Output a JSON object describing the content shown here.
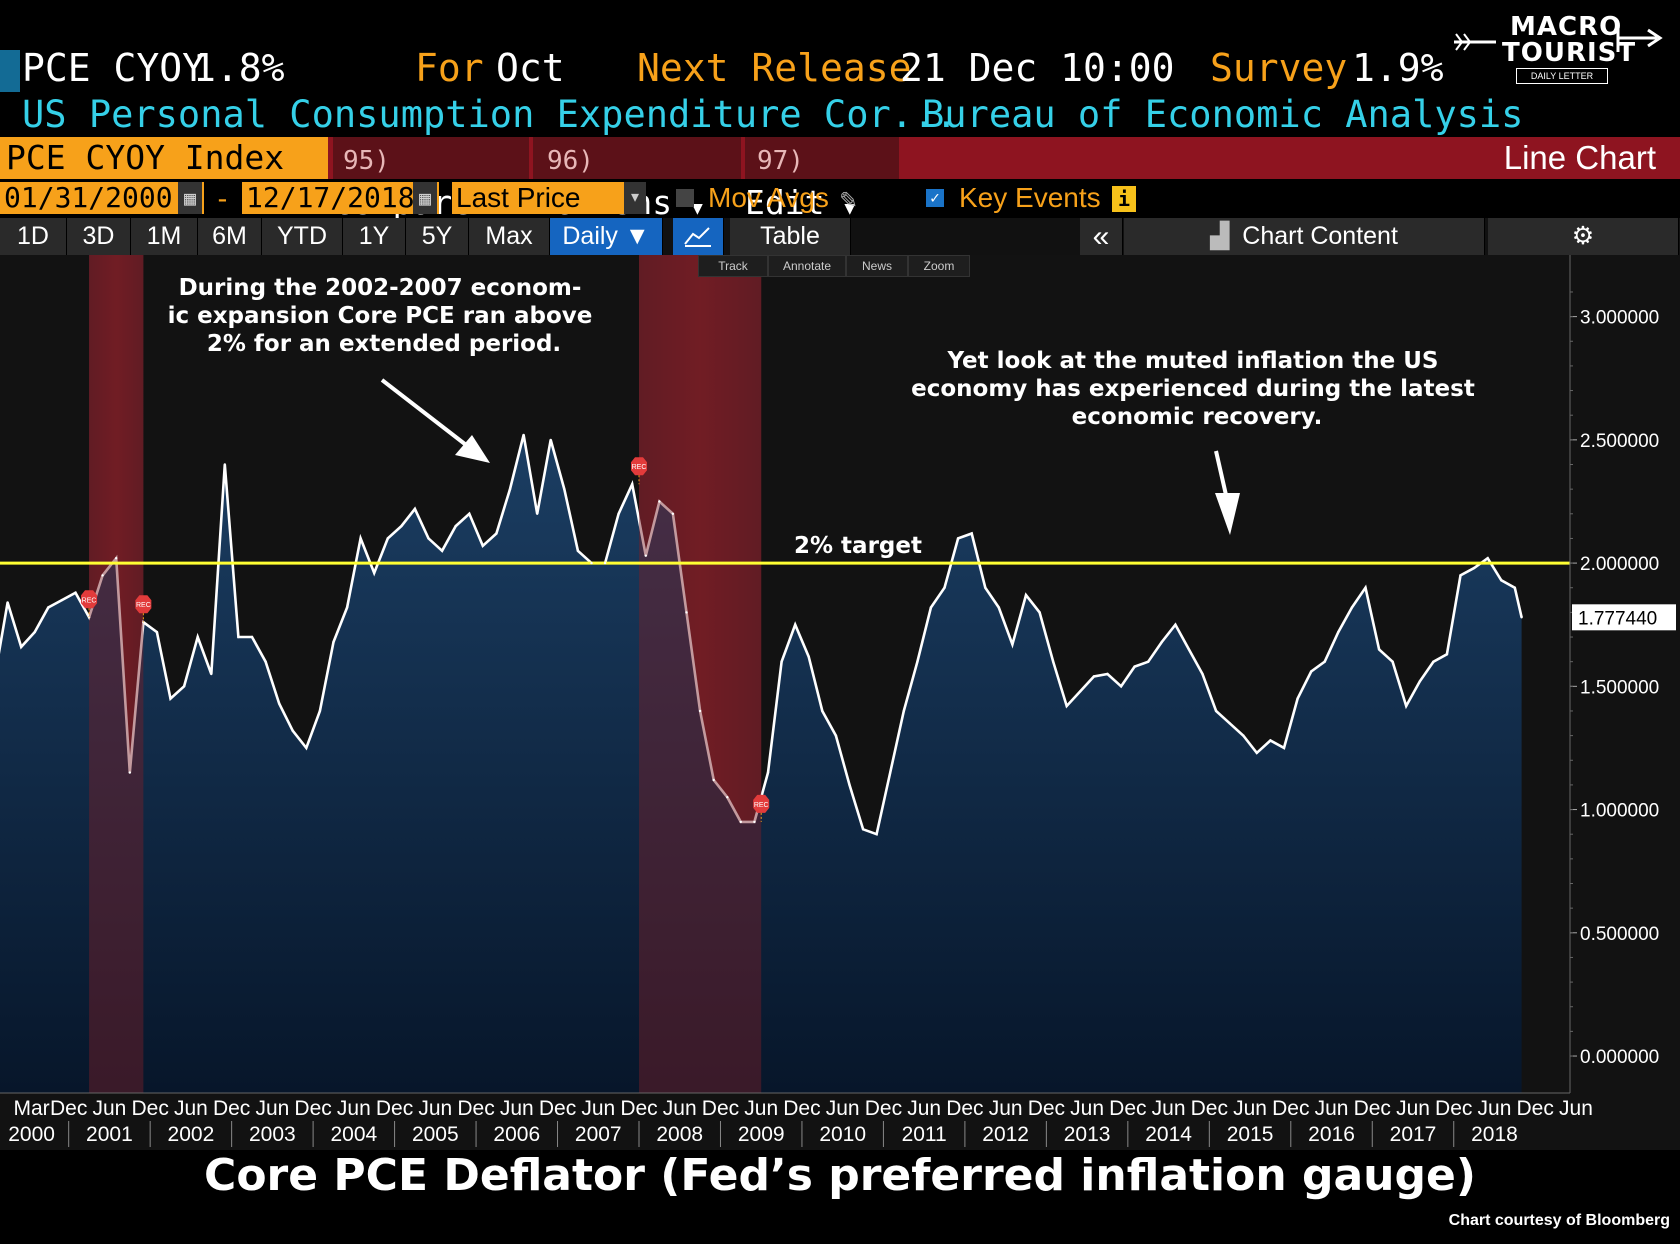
{
  "header": {
    "ticker": "PCE CYOY",
    "value": "1.8%",
    "for_label": "For",
    "for_value": "Oct",
    "next_release_label": "Next Release",
    "next_release_value": "21 Dec 10:00",
    "survey_label": "Survey",
    "survey_value": "1.9%",
    "description": "US Personal Consumption Expenditure Cor...",
    "source": "Bureau of Economic Analysis"
  },
  "logo": {
    "line1": "MACRO",
    "line2": "TOURIST",
    "line3": "DAILY LETTER"
  },
  "toolbar": {
    "security": "PCE CYOY Index",
    "compare_num": "95)",
    "compare": "Compare",
    "actions_num": "96)",
    "actions": "Actions",
    "edit_num": "97)",
    "edit": "Edit",
    "chart_type": "Line Chart",
    "start_date": "01/31/2000",
    "date_sep": "-",
    "end_date": "12/17/2018",
    "price_field": "Last Price",
    "mov_avgs": "Mov Avgs",
    "key_events": "Key Events",
    "ranges": [
      "1D",
      "3D",
      "1M",
      "6M",
      "YTD",
      "1Y",
      "5Y",
      "Max"
    ],
    "frequency": "Daily ▼",
    "table": "Table",
    "collapse": "«",
    "chart_content": "Chart Content",
    "tools": [
      "Track",
      "Annotate",
      "News",
      "Zoom"
    ]
  },
  "colors": {
    "accent": "#f7a11a",
    "cyan": "#35d0e8",
    "bar_red": "#8e1420",
    "line": "#ffffff",
    "target": "#ffff33",
    "recession": "#6a1c22",
    "area": "#0d2a4a"
  },
  "chart_data": {
    "type": "area",
    "title": "Core PCE Deflator (Fed’s preferred inflation gauge)",
    "credit": "Chart courtesy of Bloomberg",
    "ylim": [
      -0.15,
      3.25
    ],
    "y_ticks": [
      "0.000000",
      "0.500000",
      "1.000000",
      "1.500000",
      "2.000000",
      "2.500000",
      "3.000000"
    ],
    "x_month_labels": [
      "Mar",
      "Dec",
      "Jun",
      "Dec",
      "Jun",
      "Dec",
      "Jun",
      "Dec",
      "Jun",
      "Dec",
      "Jun",
      "Dec",
      "Jun",
      "Dec",
      "Jun",
      "Dec",
      "Jun",
      "Dec",
      "Jun",
      "Dec",
      "Jun",
      "Dec",
      "Jun",
      "Dec",
      "Jun",
      "Dec",
      "Jun",
      "Dec",
      "Jun",
      "Dec",
      "Jun",
      "Dec",
      "Jun",
      "Dec",
      "Jun",
      "Dec",
      "Jun",
      "Dec",
      "Jun"
    ],
    "x_year_labels": [
      "2000",
      "2001",
      "2002",
      "2003",
      "2004",
      "2005",
      "2006",
      "2007",
      "2008",
      "2009",
      "2010",
      "2011",
      "2012",
      "2013",
      "2014",
      "2015",
      "2016",
      "2017",
      "2018"
    ],
    "last_value_label": "1.777440",
    "target_value": 2.0,
    "target_label": "2% target",
    "recessions": [
      [
        "2001-03",
        "2001-11"
      ],
      [
        "2007-12",
        "2009-06"
      ]
    ],
    "annotations": [
      "During the 2002-2007 econom-\nic expansion Core PCE ran above\n2% for an extended period.",
      "Yet look at the muted inflation the US\neconomy has experienced during the latest\neconomic recovery."
    ],
    "event_marker_label": "REC",
    "series": [
      {
        "x": [
          "2000-01",
          "2000-03",
          "2000-05",
          "2000-07",
          "2000-09",
          "2000-11",
          "2001-01",
          "2001-03",
          "2001-05",
          "2001-07",
          "2001-09",
          "2001-11",
          "2002-01",
          "2002-03",
          "2002-05",
          "2002-07",
          "2002-09",
          "2002-11",
          "2003-01",
          "2003-03",
          "2003-05",
          "2003-07",
          "2003-09",
          "2003-11",
          "2004-01",
          "2004-03",
          "2004-05",
          "2004-07",
          "2004-09",
          "2004-11",
          "2005-01",
          "2005-03",
          "2005-05",
          "2005-07",
          "2005-09",
          "2005-11",
          "2006-01",
          "2006-03",
          "2006-05",
          "2006-07",
          "2006-09",
          "2006-11",
          "2007-01",
          "2007-03",
          "2007-05",
          "2007-07",
          "2007-09",
          "2007-11",
          "2008-01",
          "2008-03",
          "2008-05",
          "2008-07",
          "2008-09",
          "2008-11",
          "2009-01",
          "2009-03",
          "2009-05",
          "2009-07",
          "2009-09",
          "2009-11",
          "2010-01",
          "2010-03",
          "2010-05",
          "2010-07",
          "2010-09",
          "2010-11",
          "2011-01",
          "2011-03",
          "2011-05",
          "2011-07",
          "2011-09",
          "2011-11",
          "2012-01",
          "2012-03",
          "2012-05",
          "2012-07",
          "2012-09",
          "2012-11",
          "2013-01",
          "2013-03",
          "2013-05",
          "2013-07",
          "2013-09",
          "2013-11",
          "2014-01",
          "2014-03",
          "2014-05",
          "2014-07",
          "2014-09",
          "2014-11",
          "2015-01",
          "2015-03",
          "2015-05",
          "2015-07",
          "2015-09",
          "2015-11",
          "2016-01",
          "2016-03",
          "2016-05",
          "2016-07",
          "2016-09",
          "2016-11",
          "2017-01",
          "2017-03",
          "2017-05",
          "2017-07",
          "2017-09",
          "2017-11",
          "2018-01",
          "2018-03",
          "2018-05",
          "2018-07",
          "2018-09",
          "2018-10"
        ],
        "values": [
          1.52,
          1.84,
          1.66,
          1.72,
          1.82,
          1.85,
          1.88,
          1.78,
          1.95,
          2.02,
          1.15,
          1.76,
          1.72,
          1.45,
          1.5,
          1.7,
          1.55,
          2.4,
          1.7,
          1.7,
          1.6,
          1.43,
          1.32,
          1.25,
          1.4,
          1.68,
          1.82,
          2.1,
          1.96,
          2.1,
          2.15,
          2.22,
          2.1,
          2.05,
          2.15,
          2.2,
          2.07,
          2.12,
          2.3,
          2.52,
          2.2,
          2.5,
          2.3,
          2.05,
          2.0,
          2.0,
          2.2,
          2.32,
          2.03,
          2.25,
          2.2,
          1.8,
          1.4,
          1.12,
          1.05,
          0.95,
          0.95,
          1.15,
          1.6,
          1.75,
          1.62,
          1.4,
          1.3,
          1.1,
          0.92,
          0.9,
          1.15,
          1.4,
          1.6,
          1.82,
          1.9,
          2.1,
          2.12,
          1.9,
          1.82,
          1.67,
          1.87,
          1.8,
          1.6,
          1.42,
          1.48,
          1.54,
          1.55,
          1.5,
          1.58,
          1.6,
          1.68,
          1.75,
          1.65,
          1.55,
          1.4,
          1.35,
          1.3,
          1.23,
          1.28,
          1.25,
          1.45,
          1.56,
          1.6,
          1.72,
          1.82,
          1.9,
          1.65,
          1.6,
          1.42,
          1.52,
          1.6,
          1.63,
          1.95,
          1.98,
          2.02,
          1.93,
          1.9,
          1.78
        ]
      }
    ]
  }
}
